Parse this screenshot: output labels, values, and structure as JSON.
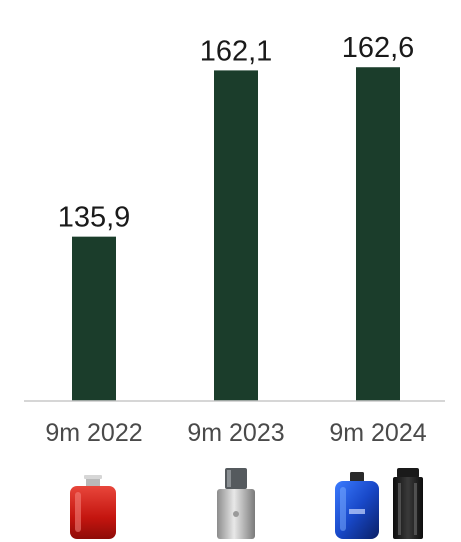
{
  "chart_data": {
    "type": "bar",
    "categories": [
      "9m 2022",
      "9m 2023",
      "9m 2024"
    ],
    "values": [
      135.9,
      162.1,
      162.6
    ],
    "value_labels": [
      "135,9",
      "162,1",
      "162,6"
    ],
    "title": "",
    "xlabel": "",
    "ylabel": "",
    "ylim": [
      110,
      165
    ],
    "grid": false,
    "legend": "none",
    "bar_color": "#1b3d2b",
    "axis_color": "#c9c9c9"
  },
  "product_icons": [
    {
      "category": "9m 2022",
      "items": [
        "red-perfume-bottle-icon"
      ]
    },
    {
      "category": "9m 2023",
      "items": [
        "silver-perfume-bottle-icon"
      ]
    },
    {
      "category": "9m 2024",
      "items": [
        "blue-perfume-bottle-icon",
        "black-perfume-bottle-icon"
      ]
    }
  ]
}
